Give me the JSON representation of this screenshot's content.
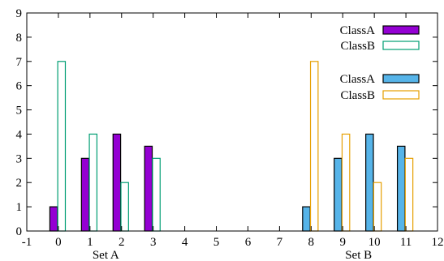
{
  "chart_data": {
    "type": "bar",
    "title": "",
    "xlabel": "",
    "ylabel": "",
    "xlim": [
      -1,
      12
    ],
    "ylim": [
      0,
      9
    ],
    "x_ticks": [
      "-1",
      "0",
      "1",
      "2",
      "3",
      "4",
      "5",
      "6",
      "7",
      "8",
      "9",
      "10",
      "11",
      "12"
    ],
    "y_ticks": [
      "0",
      "1",
      "2",
      "3",
      "4",
      "5",
      "6",
      "7",
      "8",
      "9"
    ],
    "group_labels": [
      {
        "text": "Set A",
        "x": 1.5
      },
      {
        "text": "Set B",
        "x": 9.5
      }
    ],
    "grid": false,
    "legend_placement": "top-right",
    "series": [
      {
        "name": "ClassA",
        "style": "filled",
        "color": "#9400d3",
        "x": [
          -0.15,
          0.85,
          1.85,
          2.85
        ],
        "values": [
          1,
          3,
          4,
          3.5
        ]
      },
      {
        "name": "ClassB",
        "style": "outline",
        "color": "#009e73",
        "x": [
          0.1,
          1.1,
          2.1,
          3.1
        ],
        "values": [
          7,
          4,
          2,
          3
        ]
      },
      {
        "name": "ClassA",
        "style": "filled",
        "color": "#56b4e9",
        "x": [
          7.85,
          8.85,
          9.85,
          10.85
        ],
        "values": [
          1,
          3,
          4,
          3.5
        ]
      },
      {
        "name": "ClassB",
        "style": "outline",
        "color": "#e69f00",
        "x": [
          8.1,
          9.1,
          10.1,
          11.1
        ],
        "values": [
          7,
          4,
          2,
          3
        ]
      }
    ]
  }
}
